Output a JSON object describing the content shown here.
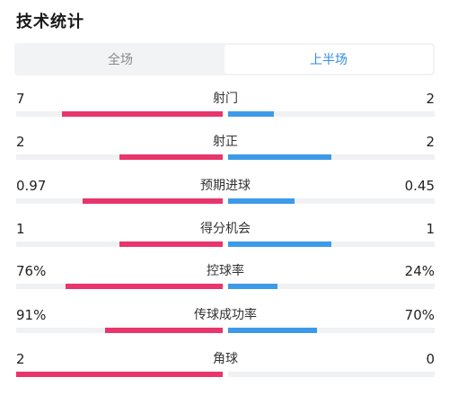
{
  "title": "技术统计",
  "tabs": [
    {
      "label": "全场",
      "active": false
    },
    {
      "label": "上半场",
      "active": true
    }
  ],
  "colors": {
    "home": "#e8356c",
    "away": "#3d9ae8",
    "accent": "#2f8bea"
  },
  "stats": [
    {
      "label": "射门",
      "left": "7",
      "right": "2",
      "left_fill": 0.78,
      "right_fill": 0.22
    },
    {
      "label": "射正",
      "left": "2",
      "right": "2",
      "left_fill": 0.5,
      "right_fill": 0.5
    },
    {
      "label": "预期进球",
      "left": "0.97",
      "right": "0.45",
      "left_fill": 0.68,
      "right_fill": 0.32
    },
    {
      "label": "得分机会",
      "left": "1",
      "right": "1",
      "left_fill": 0.5,
      "right_fill": 0.5
    },
    {
      "label": "控球率",
      "left": "76%",
      "right": "24%",
      "left_fill": 0.76,
      "right_fill": 0.24
    },
    {
      "label": "传球成功率",
      "left": "91%",
      "right": "70%",
      "left_fill": 0.57,
      "right_fill": 0.43
    },
    {
      "label": "角球",
      "left": "2",
      "right": "0",
      "left_fill": 1.0,
      "right_fill": 0.0
    }
  ]
}
